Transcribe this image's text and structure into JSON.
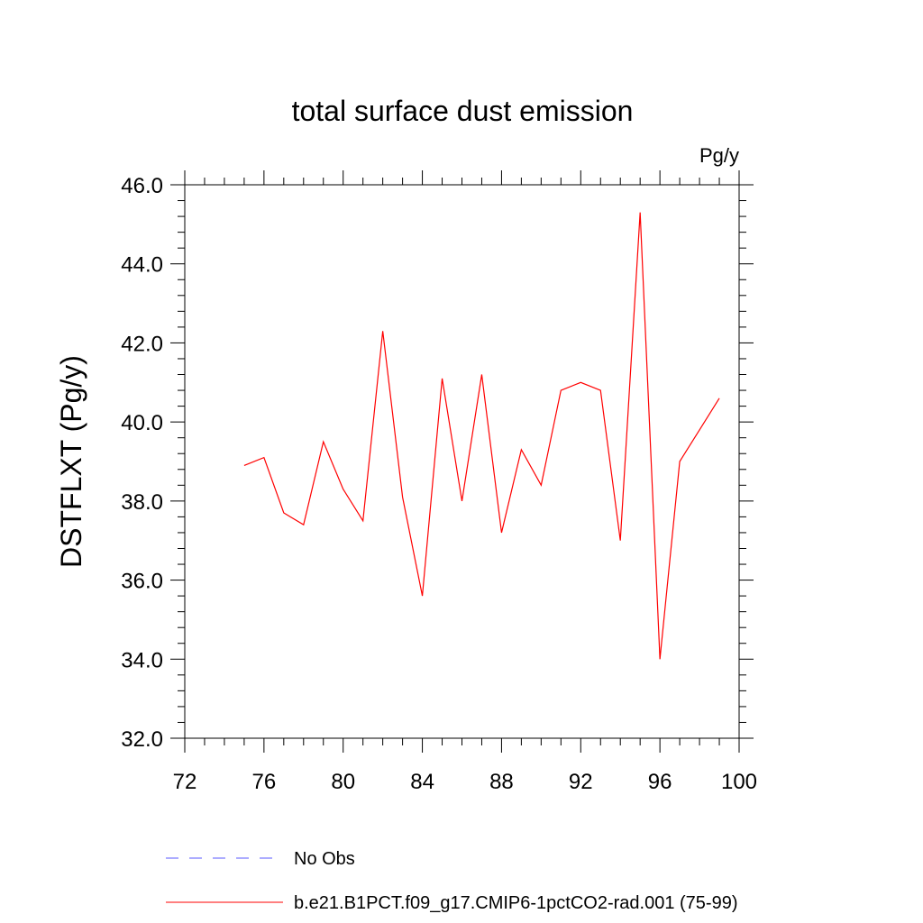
{
  "chart_data": {
    "type": "line",
    "title": "total surface dust emission",
    "units_label": "Pg/y",
    "ylabel": "DSTFLXT  (Pg/y)",
    "xlabel": "",
    "xlim": [
      72,
      100
    ],
    "ylim": [
      32.0,
      46.0
    ],
    "x_ticks": [
      "72",
      "76",
      "80",
      "84",
      "88",
      "92",
      "96",
      "100"
    ],
    "y_ticks": [
      "32.0",
      "34.0",
      "36.0",
      "38.0",
      "40.0",
      "42.0",
      "44.0",
      "46.0"
    ],
    "grid": false,
    "legend_position": "bottom",
    "series": [
      {
        "name": "No Obs",
        "color": "#5a5aff",
        "dash": "dashed",
        "x": [],
        "y": []
      },
      {
        "name": "b.e21.B1PCT.f09_g17.CMIP6-1pctCO2-rad.001 (75-99)",
        "color": "#ff0000",
        "dash": "solid",
        "x": [
          75,
          76,
          77,
          78,
          79,
          80,
          81,
          82,
          83,
          84,
          85,
          86,
          87,
          88,
          89,
          90,
          91,
          92,
          93,
          94,
          95,
          96,
          97,
          98,
          99
        ],
        "y": [
          38.9,
          39.1,
          37.7,
          37.4,
          39.5,
          38.3,
          37.5,
          42.3,
          38.1,
          35.6,
          41.1,
          38.0,
          41.2,
          37.2,
          39.3,
          38.4,
          40.8,
          41.0,
          40.8,
          37.0,
          45.3,
          34.0,
          39.0,
          39.8,
          40.6
        ]
      }
    ]
  }
}
